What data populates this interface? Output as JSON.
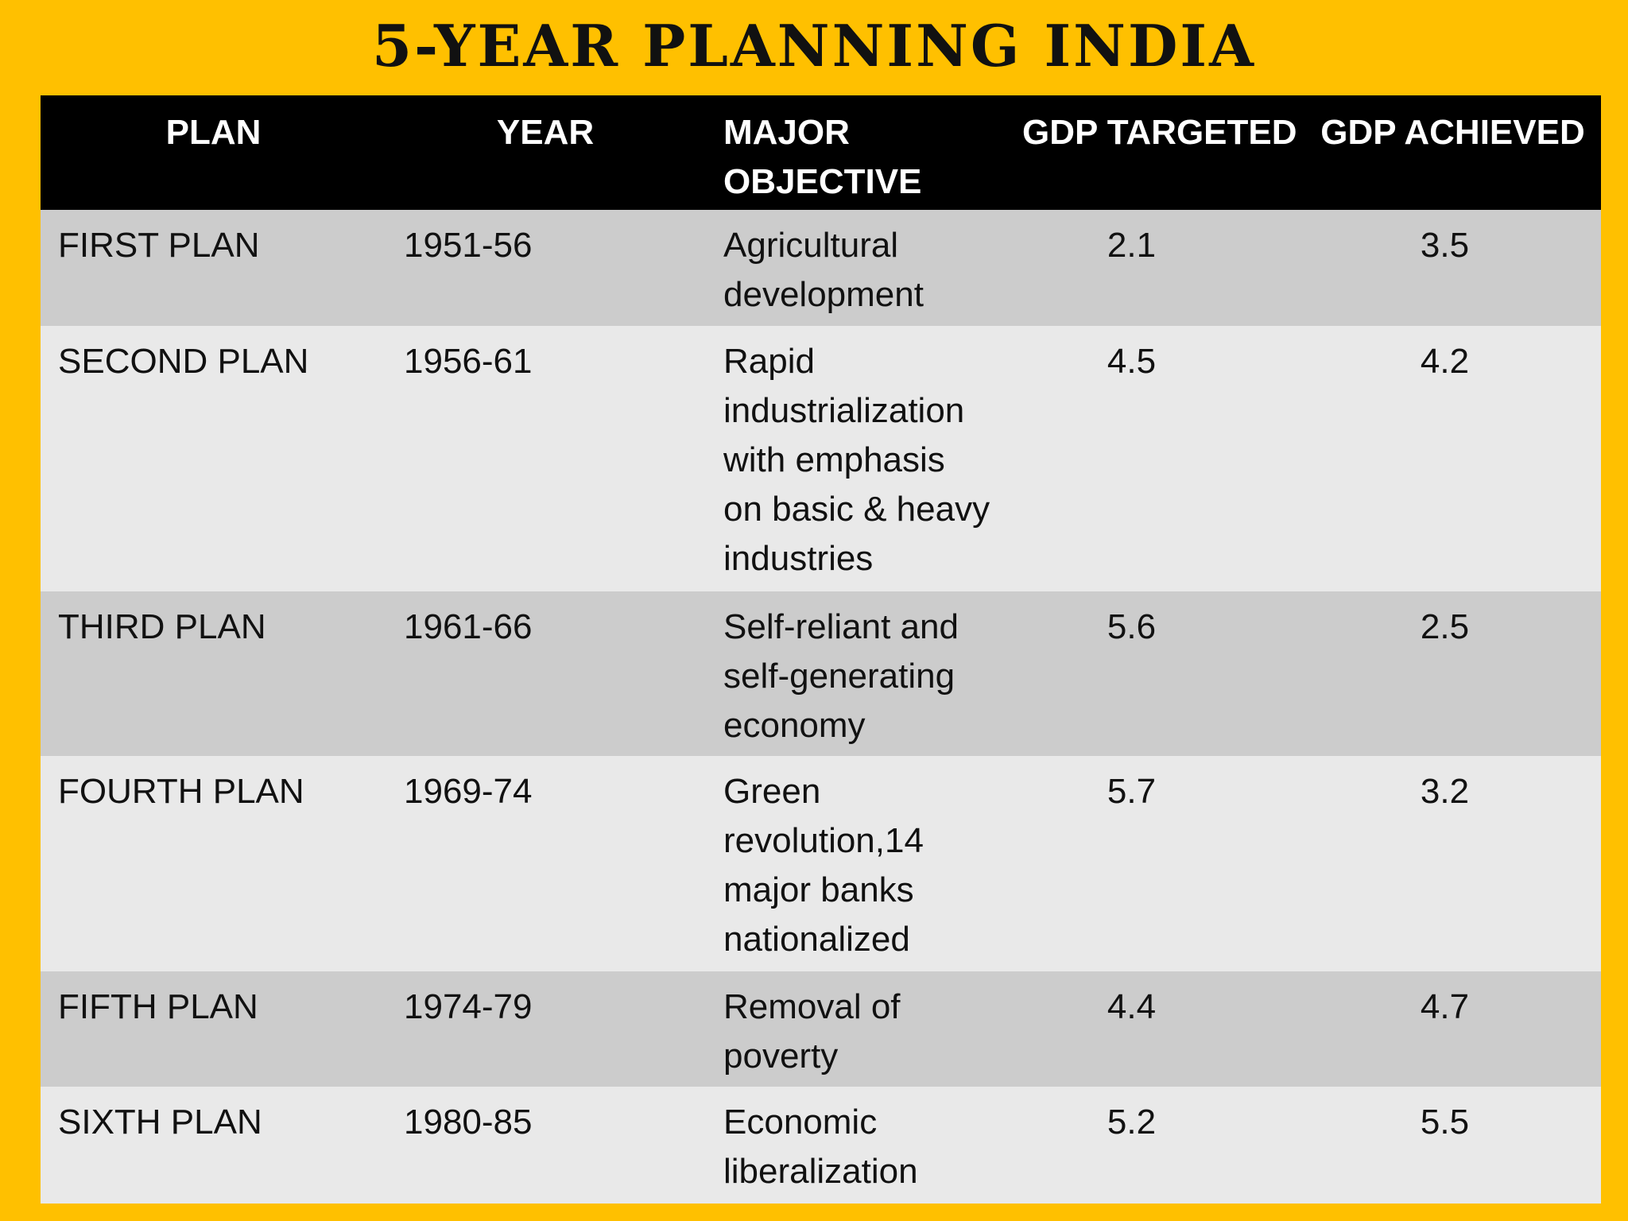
{
  "title": "5-YEAR PLANNING INDIA",
  "table": {
    "headers": {
      "plan": "PLAN",
      "year": "YEAR",
      "objective": "MAJOR OBJECTIVE",
      "gdp_targeted": "GDP TARGETED",
      "gdp_achieved": "GDP ACHIEVED"
    },
    "rows": [
      {
        "plan": "FIRST PLAN",
        "year": "1951-56",
        "objective": "Agricultural development",
        "gdp_targeted": "2.1",
        "gdp_achieved": "3.5"
      },
      {
        "plan": "SECOND PLAN",
        "year": "1956-61",
        "objective": "Rapid industrialization with emphasis on basic & heavy industries",
        "gdp_targeted": "4.5",
        "gdp_achieved": "4.2"
      },
      {
        "plan": "THIRD PLAN",
        "year": "1961-66",
        "objective": "Self-reliant and self-generating economy",
        "gdp_targeted": "5.6",
        "gdp_achieved": "2.5"
      },
      {
        "plan": "FOURTH PLAN",
        "year": "1969-74",
        "objective": "Green revolution,14 major banks nationalized",
        "gdp_targeted": "5.7",
        "gdp_achieved": "3.2"
      },
      {
        "plan": "FIFTH PLAN",
        "year": "1974-79",
        "objective": "Removal of poverty",
        "gdp_targeted": "4.4",
        "gdp_achieved": "4.7"
      },
      {
        "plan": "SIXTH PLAN",
        "year": "1980-85",
        "objective": "Economic liberalization",
        "gdp_targeted": "5.2",
        "gdp_achieved": "5.5"
      }
    ]
  }
}
